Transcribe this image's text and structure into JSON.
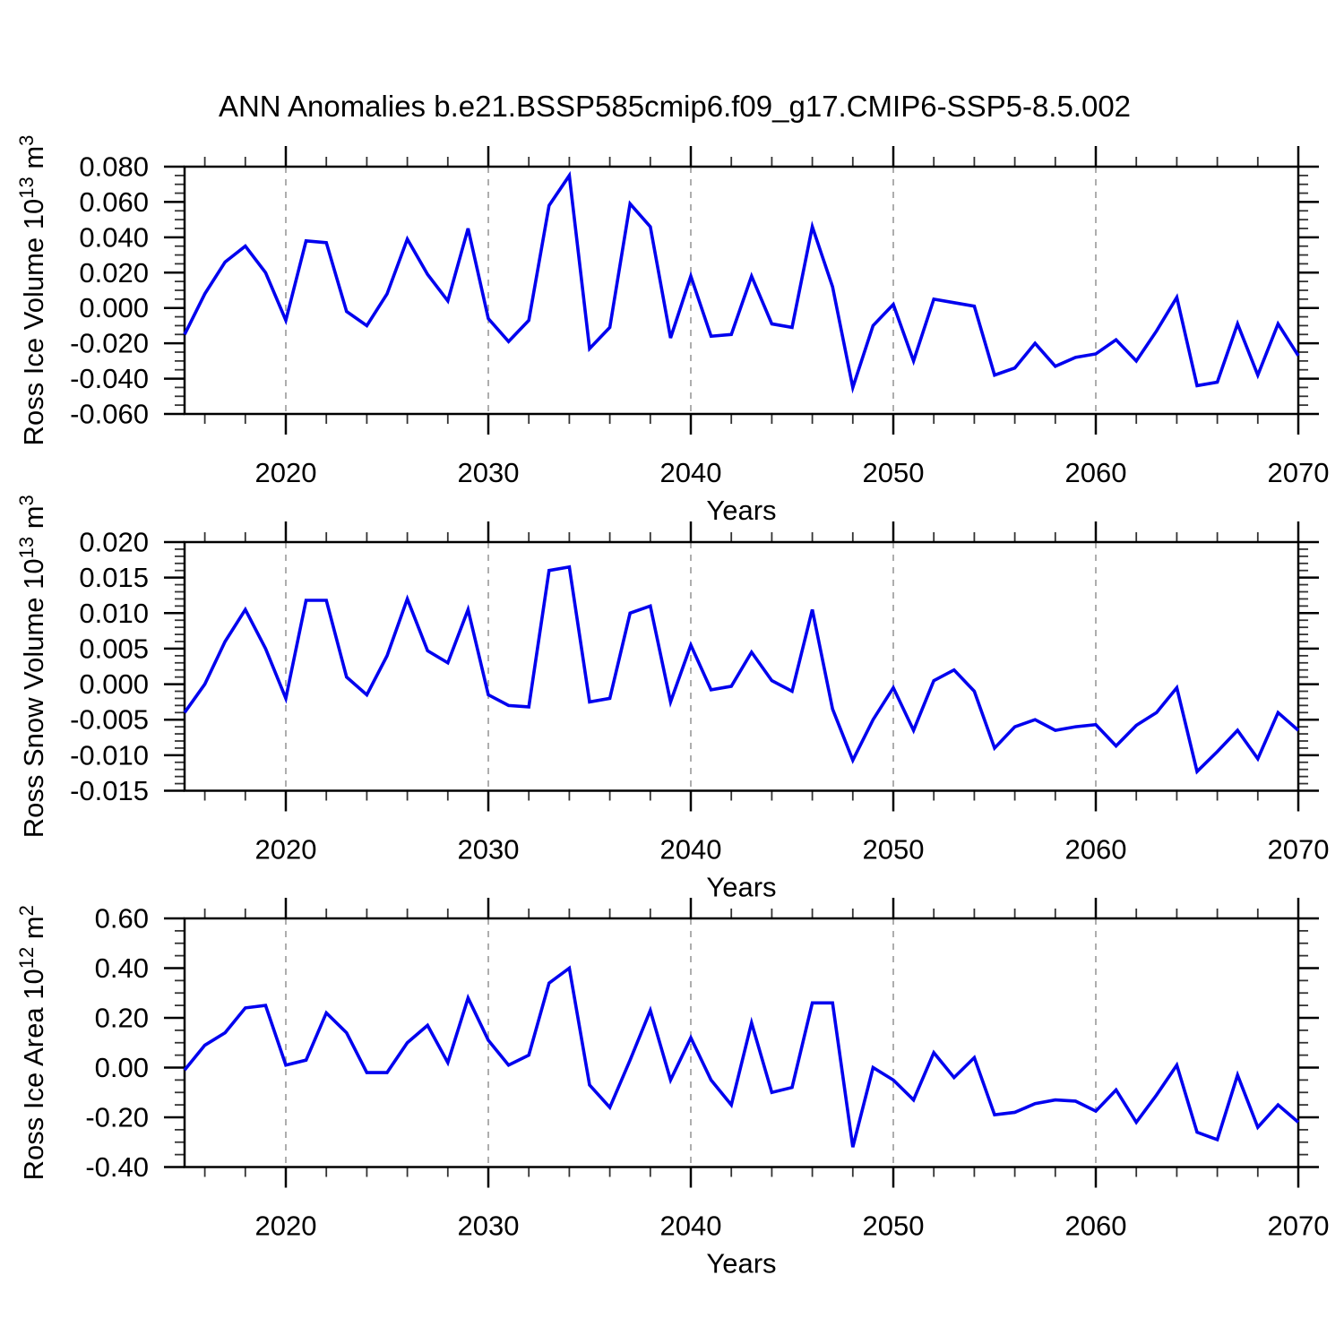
{
  "title": "ANN Anomalies b.e21.BSSP585cmip6.f09_g17.CMIP6-SSP5-8.5.002",
  "colors": {
    "line": "#0000EE",
    "grid": "#999999",
    "axis": "#000000",
    "minor_tick": "#333333",
    "background": "#FFFFFF"
  },
  "panels": [
    {
      "ylabel_base": "Ross Ice Volume 10",
      "ylabel_exp": "13",
      "ylabel_unit": " m",
      "ylabel_unit_exp": "3",
      "ytick_labels": [
        "0.080",
        "0.060",
        "0.040",
        "0.020",
        "0.000",
        "-0.020",
        "-0.040",
        "-0.060"
      ],
      "xtick_labels": [
        "2020",
        "2030",
        "2040",
        "2050",
        "2060",
        "2070"
      ],
      "xlabel": "Years"
    },
    {
      "ylabel_base": "Ross Snow Volume 10",
      "ylabel_exp": "13",
      "ylabel_unit": " m",
      "ylabel_unit_exp": "3",
      "ytick_labels": [
        "0.020",
        "0.015",
        "0.010",
        "0.005",
        "0.000",
        "-0.005",
        "-0.010",
        "-0.015"
      ],
      "xtick_labels": [
        "2020",
        "2030",
        "2040",
        "2050",
        "2060",
        "2070"
      ],
      "xlabel": "Years"
    },
    {
      "ylabel_base": "Ross Ice Area 10",
      "ylabel_exp": "12",
      "ylabel_unit": " m",
      "ylabel_unit_exp": "2",
      "ytick_labels": [
        "0.60",
        "0.40",
        "0.20",
        "0.00",
        "-0.20",
        "-0.40"
      ],
      "xtick_labels": [
        "2020",
        "2030",
        "2040",
        "2050",
        "2060",
        "2070"
      ],
      "xlabel": "Years"
    }
  ],
  "chart_data": [
    {
      "type": "line",
      "name": "Ross Ice Volume anomaly",
      "ylabel": "Ross Ice Volume 10^13 m^3",
      "xlabel": "Years",
      "xlim": [
        2015,
        2070
      ],
      "ylim": [
        -0.06,
        0.08
      ],
      "y_major_step": 0.02,
      "y_minor_step": 0.005,
      "x_major_step": 10,
      "x_minor_step": 2,
      "grid_vlines": [
        2020,
        2030,
        2040,
        2050,
        2060
      ],
      "x": [
        2015,
        2016,
        2017,
        2018,
        2019,
        2020,
        2021,
        2022,
        2023,
        2024,
        2025,
        2026,
        2027,
        2028,
        2029,
        2030,
        2031,
        2032,
        2033,
        2034,
        2035,
        2036,
        2037,
        2038,
        2039,
        2040,
        2041,
        2042,
        2043,
        2044,
        2045,
        2046,
        2047,
        2048,
        2049,
        2050,
        2051,
        2052,
        2053,
        2054,
        2055,
        2056,
        2057,
        2058,
        2059,
        2060,
        2061,
        2062,
        2063,
        2064,
        2065,
        2066,
        2067,
        2068,
        2069,
        2070
      ],
      "values": [
        -0.015,
        0.008,
        0.026,
        0.035,
        0.02,
        -0.007,
        0.038,
        0.037,
        -0.002,
        -0.01,
        0.008,
        0.039,
        0.019,
        0.004,
        0.045,
        -0.006,
        -0.019,
        -0.007,
        0.058,
        0.075,
        -0.023,
        -0.011,
        0.059,
        0.046,
        -0.017,
        0.018,
        -0.016,
        -0.015,
        0.018,
        -0.009,
        -0.011,
        0.046,
        0.012,
        -0.045,
        -0.01,
        0.002,
        -0.03,
        0.005,
        0.003,
        0.001,
        -0.038,
        -0.034,
        -0.02,
        -0.033,
        -0.028,
        -0.026,
        -0.018,
        -0.03,
        -0.013,
        0.006,
        -0.044,
        -0.042,
        -0.009,
        -0.038,
        -0.009,
        -0.027
      ]
    },
    {
      "type": "line",
      "name": "Ross Snow Volume anomaly",
      "ylabel": "Ross Snow Volume 10^13 m^3",
      "xlabel": "Years",
      "xlim": [
        2015,
        2070
      ],
      "ylim": [
        -0.015,
        0.02
      ],
      "y_major_step": 0.005,
      "y_minor_step": 0.001,
      "x_major_step": 10,
      "x_minor_step": 2,
      "grid_vlines": [
        2020,
        2030,
        2040,
        2050,
        2060
      ],
      "x": [
        2015,
        2016,
        2017,
        2018,
        2019,
        2020,
        2021,
        2022,
        2023,
        2024,
        2025,
        2026,
        2027,
        2028,
        2029,
        2030,
        2031,
        2032,
        2033,
        2034,
        2035,
        2036,
        2037,
        2038,
        2039,
        2040,
        2041,
        2042,
        2043,
        2044,
        2045,
        2046,
        2047,
        2048,
        2049,
        2050,
        2051,
        2052,
        2053,
        2054,
        2055,
        2056,
        2057,
        2058,
        2059,
        2060,
        2061,
        2062,
        2063,
        2064,
        2065,
        2066,
        2067,
        2068,
        2069,
        2070
      ],
      "values": [
        -0.004,
        0.0,
        0.006,
        0.0105,
        0.005,
        -0.002,
        0.0118,
        0.0118,
        0.001,
        -0.0015,
        0.004,
        0.012,
        0.0047,
        0.003,
        0.0105,
        -0.0015,
        -0.003,
        -0.0032,
        0.016,
        0.0165,
        -0.0025,
        -0.002,
        0.01,
        0.011,
        -0.0025,
        0.0055,
        -0.0008,
        -0.0003,
        0.0045,
        0.0005,
        -0.001,
        0.0105,
        -0.0035,
        -0.0107,
        -0.005,
        -0.0005,
        -0.0065,
        0.0005,
        0.002,
        -0.001,
        -0.009,
        -0.006,
        -0.005,
        -0.0065,
        -0.006,
        -0.0057,
        -0.0087,
        -0.0058,
        -0.004,
        -0.0005,
        -0.0123,
        -0.0095,
        -0.0065,
        -0.0105,
        -0.004,
        -0.0065
      ]
    },
    {
      "type": "line",
      "name": "Ross Ice Area anomaly",
      "ylabel": "Ross Ice Area 10^12 m^2",
      "xlabel": "Years",
      "xlim": [
        2015,
        2070
      ],
      "ylim": [
        -0.4,
        0.6
      ],
      "y_major_step": 0.2,
      "y_minor_step": 0.05,
      "x_major_step": 10,
      "x_minor_step": 2,
      "grid_vlines": [
        2020,
        2030,
        2040,
        2050,
        2060
      ],
      "x": [
        2015,
        2016,
        2017,
        2018,
        2019,
        2020,
        2021,
        2022,
        2023,
        2024,
        2025,
        2026,
        2027,
        2028,
        2029,
        2030,
        2031,
        2032,
        2033,
        2034,
        2035,
        2036,
        2037,
        2038,
        2039,
        2040,
        2041,
        2042,
        2043,
        2044,
        2045,
        2046,
        2047,
        2048,
        2049,
        2050,
        2051,
        2052,
        2053,
        2054,
        2055,
        2056,
        2057,
        2058,
        2059,
        2060,
        2061,
        2062,
        2063,
        2064,
        2065,
        2066,
        2067,
        2068,
        2069,
        2070
      ],
      "values": [
        -0.01,
        0.09,
        0.14,
        0.24,
        0.25,
        0.01,
        0.03,
        0.22,
        0.14,
        -0.02,
        -0.02,
        0.1,
        0.17,
        0.02,
        0.28,
        0.11,
        0.01,
        0.05,
        0.34,
        0.4,
        -0.07,
        -0.16,
        0.03,
        0.23,
        -0.05,
        0.12,
        -0.05,
        -0.15,
        0.18,
        -0.1,
        -0.08,
        0.26,
        0.26,
        -0.32,
        0.0,
        -0.05,
        -0.13,
        0.06,
        -0.04,
        0.04,
        -0.19,
        -0.18,
        -0.145,
        -0.13,
        -0.135,
        -0.175,
        -0.09,
        -0.22,
        -0.11,
        0.01,
        -0.26,
        -0.29,
        -0.03,
        -0.24,
        -0.15,
        -0.22
      ]
    }
  ]
}
